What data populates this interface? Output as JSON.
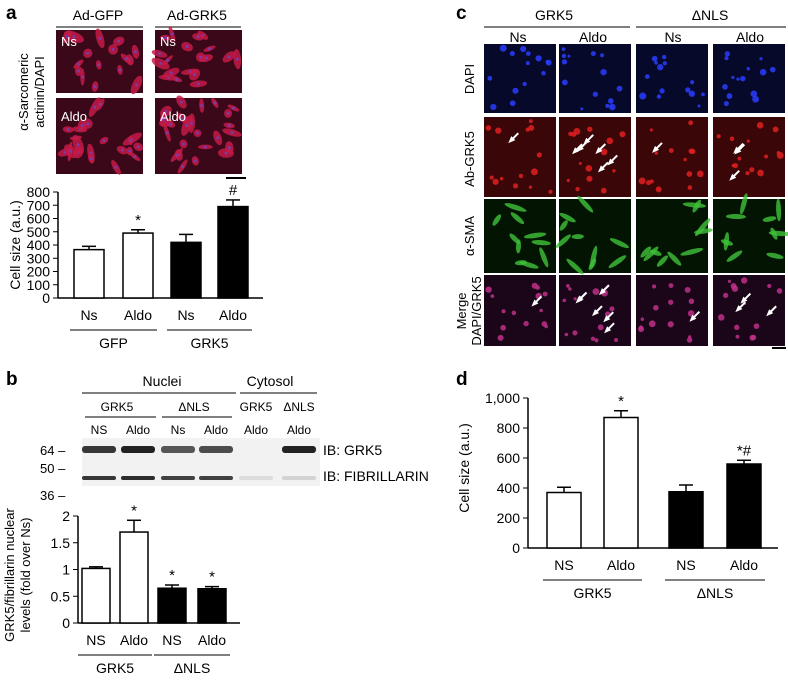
{
  "panel_a": {
    "label": "a",
    "col_headers": [
      "Ad-GFP",
      "Ad-GRK5"
    ],
    "row_label_line1": "α-Sarcomeric",
    "row_label_line2": "actinin/DAPI",
    "image_labels": [
      "Ns",
      "Ns",
      "Aldo",
      "Aldo"
    ]
  },
  "panel_b": {
    "label": "b",
    "nuclei_header": "Nuclei",
    "cytosol_header": "Cytosol",
    "group_headers": [
      "GRK5",
      "ΔNLS",
      "GRK5",
      "ΔNLS"
    ],
    "lane_labels": [
      "NS",
      "Aldo",
      "Ns",
      "Aldo",
      "Aldo",
      "Aldo"
    ],
    "mw_markers": [
      "64 –",
      "50 –",
      "36 –"
    ],
    "ib_labels": [
      "IB: GRK5",
      "IB: FIBRILLARIN"
    ]
  },
  "panel_c": {
    "label": "c",
    "group_headers": [
      "GRK5",
      "ΔNLS"
    ],
    "col_headers": [
      "Ns",
      "Aldo",
      "Ns",
      "Aldo"
    ],
    "row_labels": [
      "DAPI",
      "Ab-GRK5",
      "α-SMA"
    ],
    "merge_label_line1": "Merge",
    "merge_label_line2": "DAPI/GRK5"
  },
  "panel_d": {
    "label": "d"
  },
  "colors": {
    "red_cells": "#c41a48",
    "dapi_bg": "#070a26",
    "sma_green": "#3ec23a"
  },
  "chart_data": [
    {
      "id": "a",
      "type": "bar",
      "ylabel": "Cell size (a.u.)",
      "ylim": [
        0,
        800
      ],
      "yticks": [
        "0",
        "100",
        "200",
        "300",
        "400",
        "500",
        "600",
        "700",
        "800"
      ],
      "categories": [
        "Ns",
        "Aldo",
        "Ns",
        "Aldo"
      ],
      "groups": [
        "GFP",
        "GRK5"
      ],
      "values": [
        365,
        490,
        420,
        690
      ],
      "errors": [
        25,
        25,
        60,
        50
      ],
      "annotations": [
        "",
        "*",
        "",
        "#"
      ]
    },
    {
      "id": "b",
      "type": "bar",
      "ylabel_line1": "GRK5/fibrillarin nuclear",
      "ylabel_line2": "levels (fold over Ns)",
      "ylim": [
        0,
        2
      ],
      "yticks": [
        "0",
        "0.5",
        "1",
        "1.5",
        "2"
      ],
      "categories": [
        "NS",
        "Aldo",
        "NS",
        "Aldo"
      ],
      "groups": [
        "GRK5",
        "ΔNLS"
      ],
      "values": [
        1.02,
        1.7,
        0.65,
        0.64
      ],
      "errors": [
        0.03,
        0.22,
        0.06,
        0.04
      ],
      "annotations": [
        "",
        "*",
        "*",
        "*"
      ]
    },
    {
      "id": "d",
      "type": "bar",
      "ylabel": "Cell size (a.u.)",
      "ylim": [
        0,
        1000
      ],
      "yticks": [
        "0",
        "200",
        "400",
        "600",
        "800",
        "1,000"
      ],
      "categories": [
        "NS",
        "Aldo",
        "NS",
        "Aldo"
      ],
      "groups": [
        "GRK5",
        "ΔNLS"
      ],
      "values": [
        370,
        870,
        375,
        560
      ],
      "errors": [
        35,
        45,
        45,
        25
      ],
      "annotations": [
        "",
        "*",
        "",
        "*#"
      ]
    }
  ]
}
